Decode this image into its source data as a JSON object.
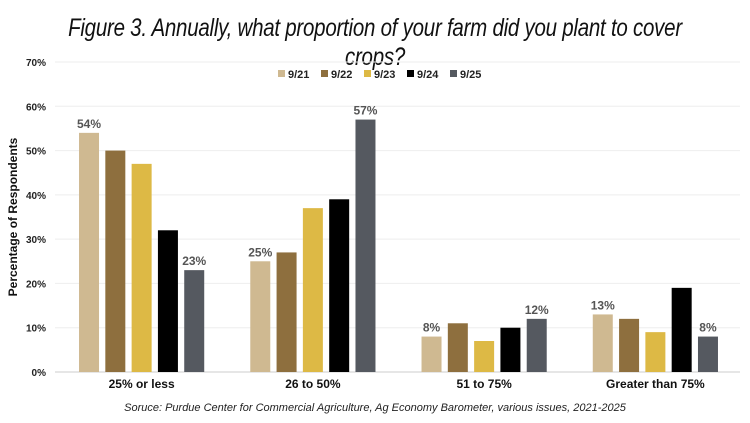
{
  "title": "Figure 3.  Annually, what proportion of your farm did you plant to cover crops?",
  "source": "Soruce: Purdue Center for Commercial Agriculture, Ag Economy Barometer, various issues, 2021-2025",
  "chart_data": {
    "type": "bar",
    "categories": [
      "25% or less",
      "26 to 50%",
      "51 to 75%",
      "Greater than 75%"
    ],
    "series": [
      {
        "name": "9/21",
        "color": "#CFB991",
        "values": [
          54,
          25,
          8,
          13
        ]
      },
      {
        "name": "9/22",
        "color": "#8E6F3E",
        "values": [
          50,
          27,
          11,
          12
        ]
      },
      {
        "name": "9/23",
        "color": "#DDB945",
        "values": [
          47,
          37,
          7,
          9
        ]
      },
      {
        "name": "9/24",
        "color": "#000000",
        "values": [
          32,
          39,
          10,
          19
        ]
      },
      {
        "name": "9/25",
        "color": "#555960",
        "values": [
          23,
          57,
          12,
          8
        ]
      }
    ],
    "data_labels": {
      "series_indices": [
        0,
        4
      ]
    },
    "ylabel": "Percentage of Respondents",
    "xlabel": "",
    "ylim": [
      0,
      70
    ],
    "yticks": [
      "0%",
      "10%",
      "20%",
      "30%",
      "40%",
      "50%",
      "60%",
      "70%"
    ],
    "grid": true,
    "legend": "top-center"
  }
}
